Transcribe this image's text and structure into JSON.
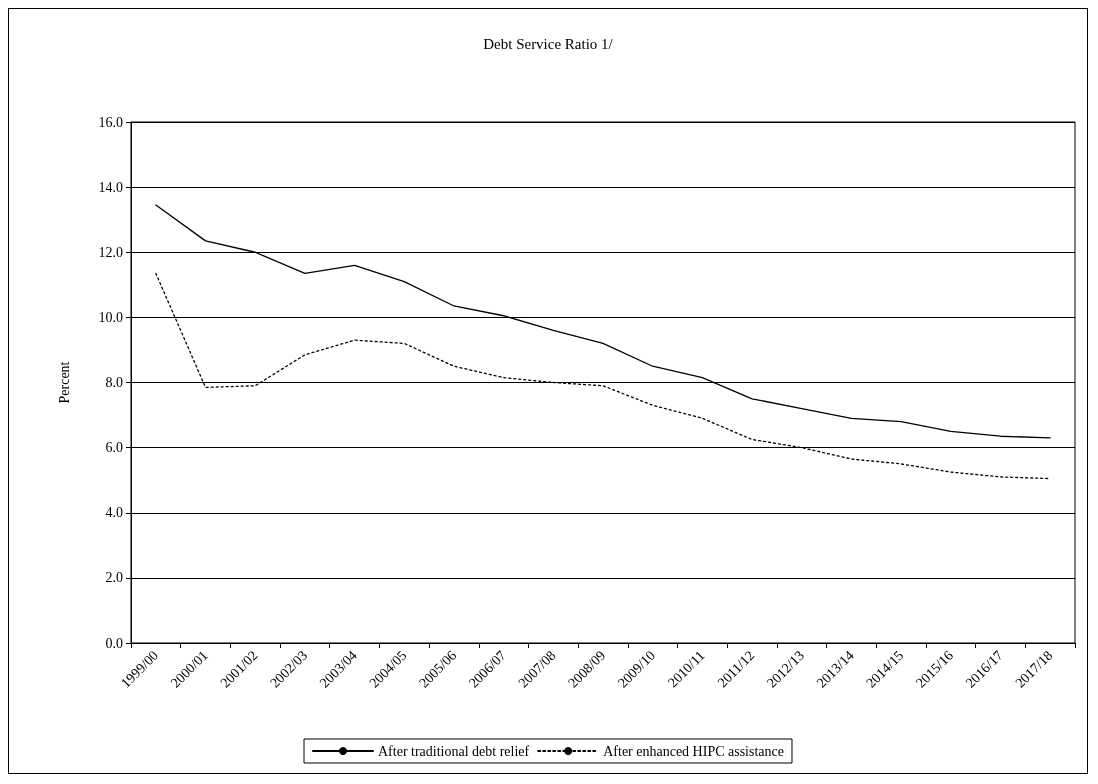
{
  "chart_data": {
    "type": "line",
    "title": "Debt Service Ratio 1/",
    "ylabel": "Percent",
    "categories": [
      "1999/00",
      "2000/01",
      "2001/02",
      "2002/03",
      "2003/04",
      "2004/05",
      "2005/06",
      "2006/07",
      "2007/08",
      "2008/09",
      "2009/10",
      "2010/11",
      "2011/12",
      "2012/13",
      "2013/14",
      "2014/15",
      "2015/16",
      "2016/17",
      "2017/18"
    ],
    "series": [
      {
        "name": "After traditional debt relief",
        "color": "#000000",
        "line_style": "solid",
        "values": [
          13.45,
          12.35,
          12.0,
          11.35,
          11.6,
          11.1,
          10.35,
          10.05,
          9.6,
          9.2,
          8.5,
          8.15,
          7.5,
          7.2,
          6.9,
          6.8,
          6.5,
          6.35,
          6.3
        ]
      },
      {
        "name": "After enhanced HIPC assistance",
        "color": "#000000",
        "line_style": "dotted",
        "values": [
          11.35,
          7.85,
          7.9,
          8.85,
          9.3,
          9.2,
          8.5,
          8.15,
          8.0,
          7.9,
          7.3,
          6.9,
          6.25,
          6.0,
          5.65,
          5.5,
          5.25,
          5.1,
          5.05
        ]
      }
    ],
    "ylim": [
      0,
      16
    ],
    "yticks": [
      {
        "value": 0,
        "label": "0.0"
      },
      {
        "value": 2,
        "label": "2.0"
      },
      {
        "value": 4,
        "label": "4.0"
      },
      {
        "value": 6,
        "label": "6.0"
      },
      {
        "value": 8,
        "label": "8.0"
      },
      {
        "value": 10,
        "label": "10.0"
      },
      {
        "value": 12,
        "label": "12.0"
      },
      {
        "value": 14,
        "label": "14.0"
      },
      {
        "value": 16,
        "label": "16.0"
      }
    ],
    "grid": "y",
    "legend": "bottom",
    "marker": "none"
  }
}
